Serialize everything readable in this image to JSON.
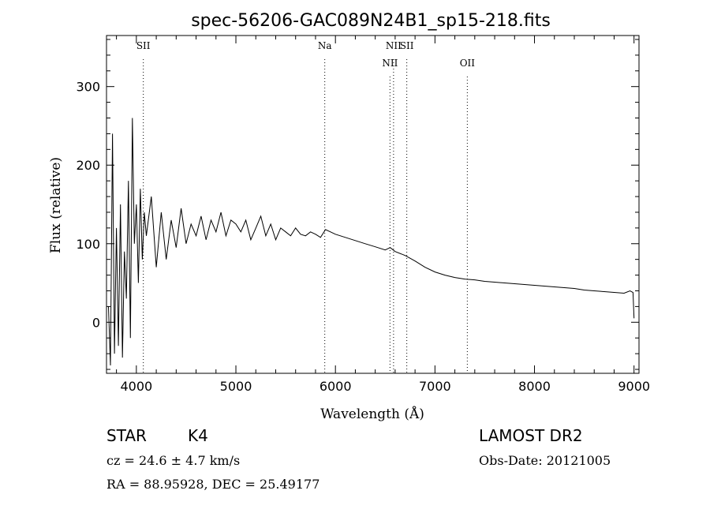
{
  "footer": {
    "object_class": "STAR",
    "subclass": "K4",
    "cz": "cz = 24.6 ± 4.7 km/s",
    "radec": "RA =  88.95928, DEC =  25.49177",
    "survey": "LAMOST DR2",
    "obs_date": "Obs-Date: 20121005"
  },
  "chart_data": {
    "type": "line",
    "title": "spec-56206-GAC089N24B1_sp15-218.fits",
    "xlabel": "Wavelength (Å)",
    "ylabel": "Flux (relative)",
    "xlim": [
      3700,
      9050
    ],
    "ylim": [
      -65,
      365
    ],
    "x_ticks": [
      4000,
      5000,
      6000,
      7000,
      8000,
      9000
    ],
    "y_ticks": [
      0,
      100,
      200,
      300
    ],
    "grid": false,
    "line_color": "#000000",
    "series": [
      {
        "x": [
          3720,
          3740,
          3760,
          3780,
          3800,
          3820,
          3840,
          3860,
          3880,
          3900,
          3920,
          3940,
          3960,
          3980,
          4000,
          4020,
          4040,
          4060,
          4080,
          4100,
          4150,
          4200,
          4250,
          4300,
          4350,
          4400,
          4450,
          4500,
          4550,
          4600,
          4650,
          4700,
          4750,
          4800,
          4850,
          4900,
          4950,
          5000,
          5050,
          5100,
          5150,
          5200,
          5250,
          5300,
          5350,
          5400,
          5450,
          5500,
          5550,
          5600,
          5650,
          5700,
          5750,
          5800,
          5850,
          5900,
          5950,
          6000,
          6100,
          6200,
          6300,
          6400,
          6500,
          6550,
          6600,
          6700,
          6800,
          6900,
          7000,
          7100,
          7200,
          7300,
          7400,
          7500,
          7600,
          7700,
          7800,
          7900,
          8000,
          8100,
          8200,
          8300,
          8400,
          8500,
          8600,
          8700,
          8800,
          8900,
          8960,
          8990,
          9000
        ],
        "y": [
          20,
          -55,
          240,
          -40,
          120,
          -30,
          150,
          -45,
          90,
          30,
          180,
          -20,
          260,
          100,
          150,
          50,
          170,
          80,
          140,
          110,
          160,
          70,
          140,
          80,
          130,
          95,
          145,
          100,
          125,
          110,
          135,
          105,
          130,
          115,
          140,
          110,
          130,
          125,
          115,
          130,
          105,
          120,
          135,
          110,
          125,
          105,
          120,
          115,
          110,
          120,
          112,
          110,
          115,
          112,
          108,
          118,
          115,
          112,
          108,
          104,
          100,
          96,
          92,
          95,
          90,
          85,
          78,
          70,
          64,
          60,
          57,
          55,
          54,
          52,
          51,
          50,
          49,
          48,
          47,
          46,
          45,
          44,
          43,
          41,
          40,
          39,
          38,
          37,
          40,
          38,
          5
        ]
      }
    ],
    "annotations": [
      {
        "label": "SII",
        "x": 4070,
        "row": 0
      },
      {
        "label": "Na",
        "x": 5893,
        "row": 0
      },
      {
        "label": "NII",
        "x": 6584,
        "row": 0
      },
      {
        "label": "NII",
        "x": 6548,
        "row": 1
      },
      {
        "label": "OII",
        "x": 7325,
        "row": 1
      },
      {
        "label": "SII",
        "x": 6717,
        "row": 0
      }
    ]
  }
}
